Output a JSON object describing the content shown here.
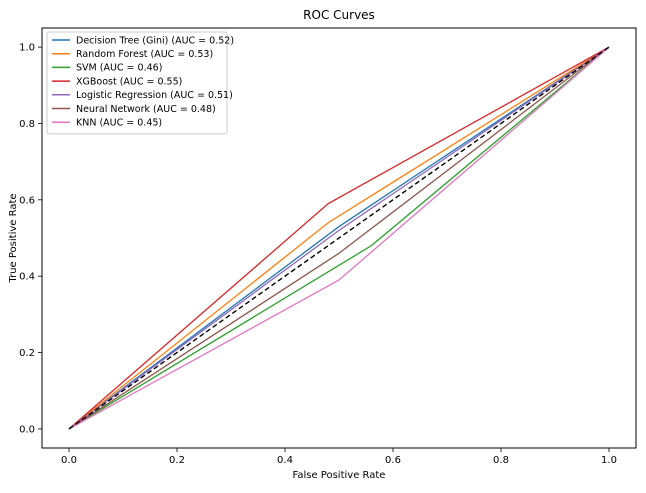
{
  "chart_data": {
    "type": "line",
    "title": "ROC Curves",
    "xlabel": "False Positive Rate",
    "ylabel": "True Positive Rate",
    "xlim": [
      -0.05,
      1.05
    ],
    "ylim": [
      -0.05,
      1.05
    ],
    "xticks": [
      "0.0",
      "0.2",
      "0.4",
      "0.6",
      "0.8",
      "1.0"
    ],
    "yticks": [
      "0.0",
      "0.2",
      "0.4",
      "0.6",
      "0.8",
      "1.0"
    ],
    "grid": false,
    "legend_position": "top-left",
    "series": [
      {
        "name": "Decision Tree (Gini) (AUC = 0.52)",
        "color": "#1f77b4",
        "x": [
          0,
          0.5,
          1.0
        ],
        "y": [
          0,
          0.53,
          1.0
        ]
      },
      {
        "name": "Random Forest (AUC = 0.53)",
        "color": "#ff7f0e",
        "x": [
          0,
          0.48,
          1.0
        ],
        "y": [
          0,
          0.54,
          1.0
        ]
      },
      {
        "name": "SVM (AUC = 0.46)",
        "color": "#2ca02c",
        "x": [
          0,
          0.56,
          1.0
        ],
        "y": [
          0,
          0.48,
          1.0
        ]
      },
      {
        "name": "XGBoost (AUC = 0.55)",
        "color": "#d62728",
        "x": [
          0,
          0.48,
          1.0
        ],
        "y": [
          0,
          0.59,
          1.0
        ]
      },
      {
        "name": "Logistic Regression (AUC = 0.51)",
        "color": "#9467bd",
        "x": [
          0,
          0.5,
          1.0
        ],
        "y": [
          0,
          0.52,
          1.0
        ]
      },
      {
        "name": "Neural Network (AUC = 0.48)",
        "color": "#8c564b",
        "x": [
          0,
          0.5,
          1.0
        ],
        "y": [
          0,
          0.46,
          1.0
        ]
      },
      {
        "name": "KNN (AUC = 0.45)",
        "color": "#e377c2",
        "x": [
          0,
          0.5,
          1.0
        ],
        "y": [
          0,
          0.39,
          1.0
        ]
      }
    ],
    "reference_line": {
      "x": [
        0,
        1
      ],
      "y": [
        0,
        1
      ],
      "color": "#000000",
      "style": "dashed"
    }
  }
}
